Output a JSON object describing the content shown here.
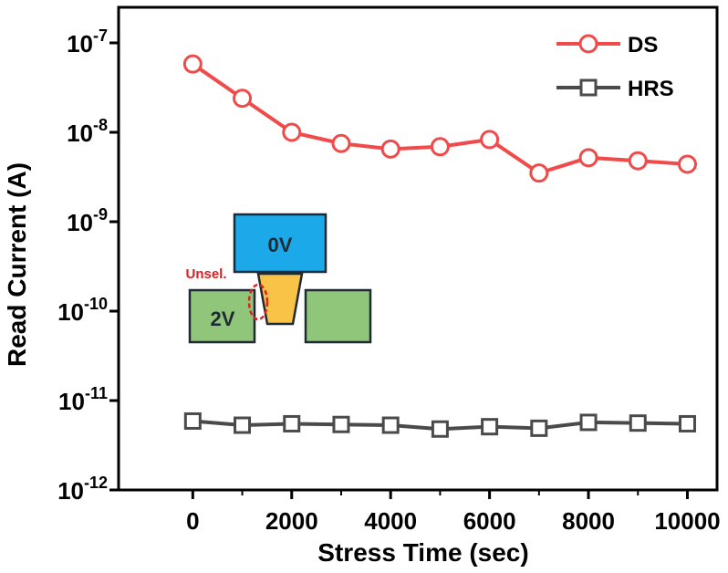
{
  "chart_data": {
    "type": "line",
    "xlabel": "Stress Time (sec)",
    "ylabel": "Read Current (A)",
    "y_scale": "log",
    "xlim": [
      -1500,
      10600
    ],
    "ylim": [
      1e-12,
      2.5e-07
    ],
    "x_ticks": [
      0,
      2000,
      4000,
      6000,
      8000,
      10000
    ],
    "x_tick_labels": [
      "0",
      "2000",
      "4000",
      "6000",
      "8000",
      "10000"
    ],
    "y_ticks": [
      1e-12,
      1e-11,
      1e-10,
      1e-09,
      1e-08,
      1e-07
    ],
    "y_tick_labels": [
      {
        "base": "10",
        "exp": "-12"
      },
      {
        "base": "10",
        "exp": "-11"
      },
      {
        "base": "10",
        "exp": "-10"
      },
      {
        "base": "10",
        "exp": "-9"
      },
      {
        "base": "10",
        "exp": "-8"
      },
      {
        "base": "10",
        "exp": "-7"
      }
    ],
    "grid": false,
    "legend_position": "top-right",
    "x": [
      0,
      1000,
      2000,
      3000,
      4000,
      5000,
      6000,
      7000,
      8000,
      9000,
      10000
    ],
    "series": [
      {
        "name": "DS",
        "marker": "circle",
        "color": "#f04a4a",
        "values": [
          5.8e-08,
          2.4e-08,
          1e-08,
          7.5e-09,
          6.5e-09,
          6.9e-09,
          8.3e-09,
          3.5e-09,
          5.2e-09,
          4.8e-09,
          4.4e-09
        ]
      },
      {
        "name": "HRS",
        "marker": "square",
        "color": "#4a4a4a",
        "values": [
          5.9e-12,
          5.3e-12,
          5.5e-12,
          5.4e-12,
          5.3e-12,
          4.8e-12,
          5.1e-12,
          4.9e-12,
          5.7e-12,
          5.6e-12,
          5.5e-12
        ]
      }
    ],
    "annotations": {
      "top_electrode": "0V",
      "left_electrode": "2V",
      "unselected": "Unsel.",
      "colors": {
        "top_electrode": "#1ba9ea",
        "side_electrodes": "#8fc67a",
        "channel": "#f8c347",
        "unselected_marker": "#e02020"
      }
    }
  }
}
